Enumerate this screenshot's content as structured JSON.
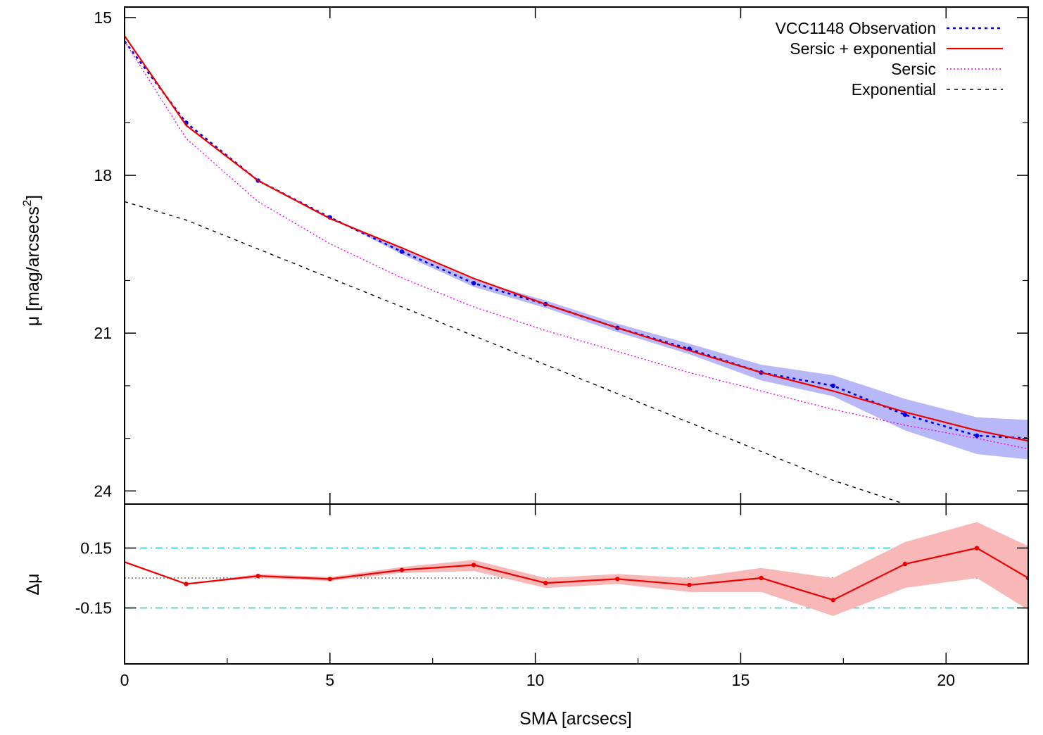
{
  "chart_data": [
    {
      "type": "line",
      "panel": "surface-brightness-profile",
      "xlabel": "",
      "ylabel_main": "μ [mag/arcsecs",
      "ylabel_sup": "2",
      "ylabel_tail": "]",
      "xlim": [
        0,
        22
      ],
      "ylim": [
        24.25,
        14.8
      ],
      "y_inverted": true,
      "yticks": [
        15,
        18,
        21,
        24
      ],
      "ytick_labels": [
        "15",
        "18",
        "21",
        "24"
      ],
      "y_minor_ticks": [
        17,
        20,
        22,
        23
      ],
      "xticks": [
        0,
        5,
        10,
        15,
        20
      ],
      "legend_position": "top-right",
      "grid": false,
      "series": [
        {
          "name": "VCC1148 Observation",
          "color": "#0000ee",
          "style": "dotted-points",
          "x": [
            0,
            1.5,
            3.25,
            5.0,
            6.75,
            8.5,
            10.25,
            12.0,
            13.75,
            15.5,
            17.25,
            19.0,
            20.75,
            22.0
          ],
          "y": [
            15.45,
            17.0,
            18.1,
            18.8,
            19.45,
            20.05,
            20.45,
            20.9,
            21.3,
            21.75,
            22.0,
            22.55,
            22.95,
            23.0
          ],
          "band_low": [
            15.45,
            17.0,
            18.1,
            18.8,
            19.4,
            19.98,
            20.38,
            20.82,
            21.2,
            21.6,
            21.8,
            22.25,
            22.6,
            22.65
          ],
          "band_high": [
            15.45,
            17.0,
            18.1,
            18.8,
            19.5,
            20.12,
            20.52,
            20.98,
            21.4,
            21.9,
            22.2,
            22.85,
            23.3,
            23.4
          ]
        },
        {
          "name": "Sersic + exponential",
          "color": "#ee0000",
          "style": "solid",
          "x": [
            0,
            1.5,
            3.25,
            5.0,
            6.75,
            8.5,
            10.25,
            12.0,
            13.75,
            15.5,
            17.25,
            19.0,
            20.75,
            22.0
          ],
          "y": [
            15.35,
            17.05,
            18.1,
            18.82,
            19.38,
            19.96,
            20.45,
            20.9,
            21.33,
            21.75,
            22.1,
            22.5,
            22.85,
            23.05
          ]
        },
        {
          "name": "Sersic",
          "color": "#ee00ee",
          "style": "dotted",
          "x": [
            0,
            1.5,
            3.25,
            5.0,
            6.75,
            8.5,
            10.25,
            12.0,
            13.75,
            15.5,
            17.25,
            19.0,
            20.75,
            22.0
          ],
          "y": [
            15.45,
            17.3,
            18.5,
            19.3,
            19.95,
            20.5,
            20.95,
            21.35,
            21.75,
            22.1,
            22.45,
            22.75,
            23.0,
            23.2
          ]
        },
        {
          "name": "Exponential",
          "color": "#000000",
          "style": "dashed",
          "x": [
            0,
            1.5,
            3.25,
            5.0,
            6.75,
            8.5,
            10.25,
            12.0,
            13.75,
            15.5,
            17.25,
            19.0
          ],
          "y": [
            18.5,
            18.85,
            19.4,
            19.95,
            20.5,
            21.05,
            21.6,
            22.15,
            22.7,
            23.25,
            23.8,
            24.25
          ]
        }
      ]
    },
    {
      "type": "line",
      "panel": "residuals",
      "xlabel": "SMA [arcsecs]",
      "ylabel": "Δμ",
      "xlim": [
        0,
        22
      ],
      "ylim": [
        -0.43,
        0.37
      ],
      "yticks": [
        0.15,
        -0.15
      ],
      "ytick_labels": [
        "0.15",
        "-0.15"
      ],
      "xticks": [
        0,
        5,
        10,
        15,
        20
      ],
      "xtick_labels": [
        "0",
        "5",
        "10",
        "15",
        "20"
      ],
      "x_minor_ticks": [
        2.5,
        7.5,
        12.5,
        17.5
      ],
      "reference_lines": [
        0.15,
        0,
        -0.15
      ],
      "series": [
        {
          "name": "residual",
          "color": "#ee0000",
          "style": "solid-points",
          "x": [
            0,
            1.5,
            3.25,
            5.0,
            6.75,
            8.5,
            10.25,
            12.0,
            13.75,
            15.5,
            17.25,
            19.0,
            20.75,
            22.0
          ],
          "y": [
            0.08,
            -0.03,
            0.01,
            -0.005,
            0.04,
            0.065,
            -0.025,
            -0.005,
            -0.035,
            0.0,
            -0.11,
            0.07,
            0.15,
            0.0
          ],
          "band_low": [
            0.08,
            -0.03,
            0.0,
            -0.015,
            0.025,
            0.035,
            -0.05,
            -0.03,
            -0.07,
            -0.07,
            -0.19,
            -0.05,
            0.0,
            -0.16
          ],
          "band_high": [
            0.08,
            -0.03,
            0.02,
            0.005,
            0.055,
            0.09,
            0.0,
            0.02,
            0.0,
            0.05,
            0.0,
            0.18,
            0.28,
            0.16
          ]
        }
      ]
    }
  ]
}
